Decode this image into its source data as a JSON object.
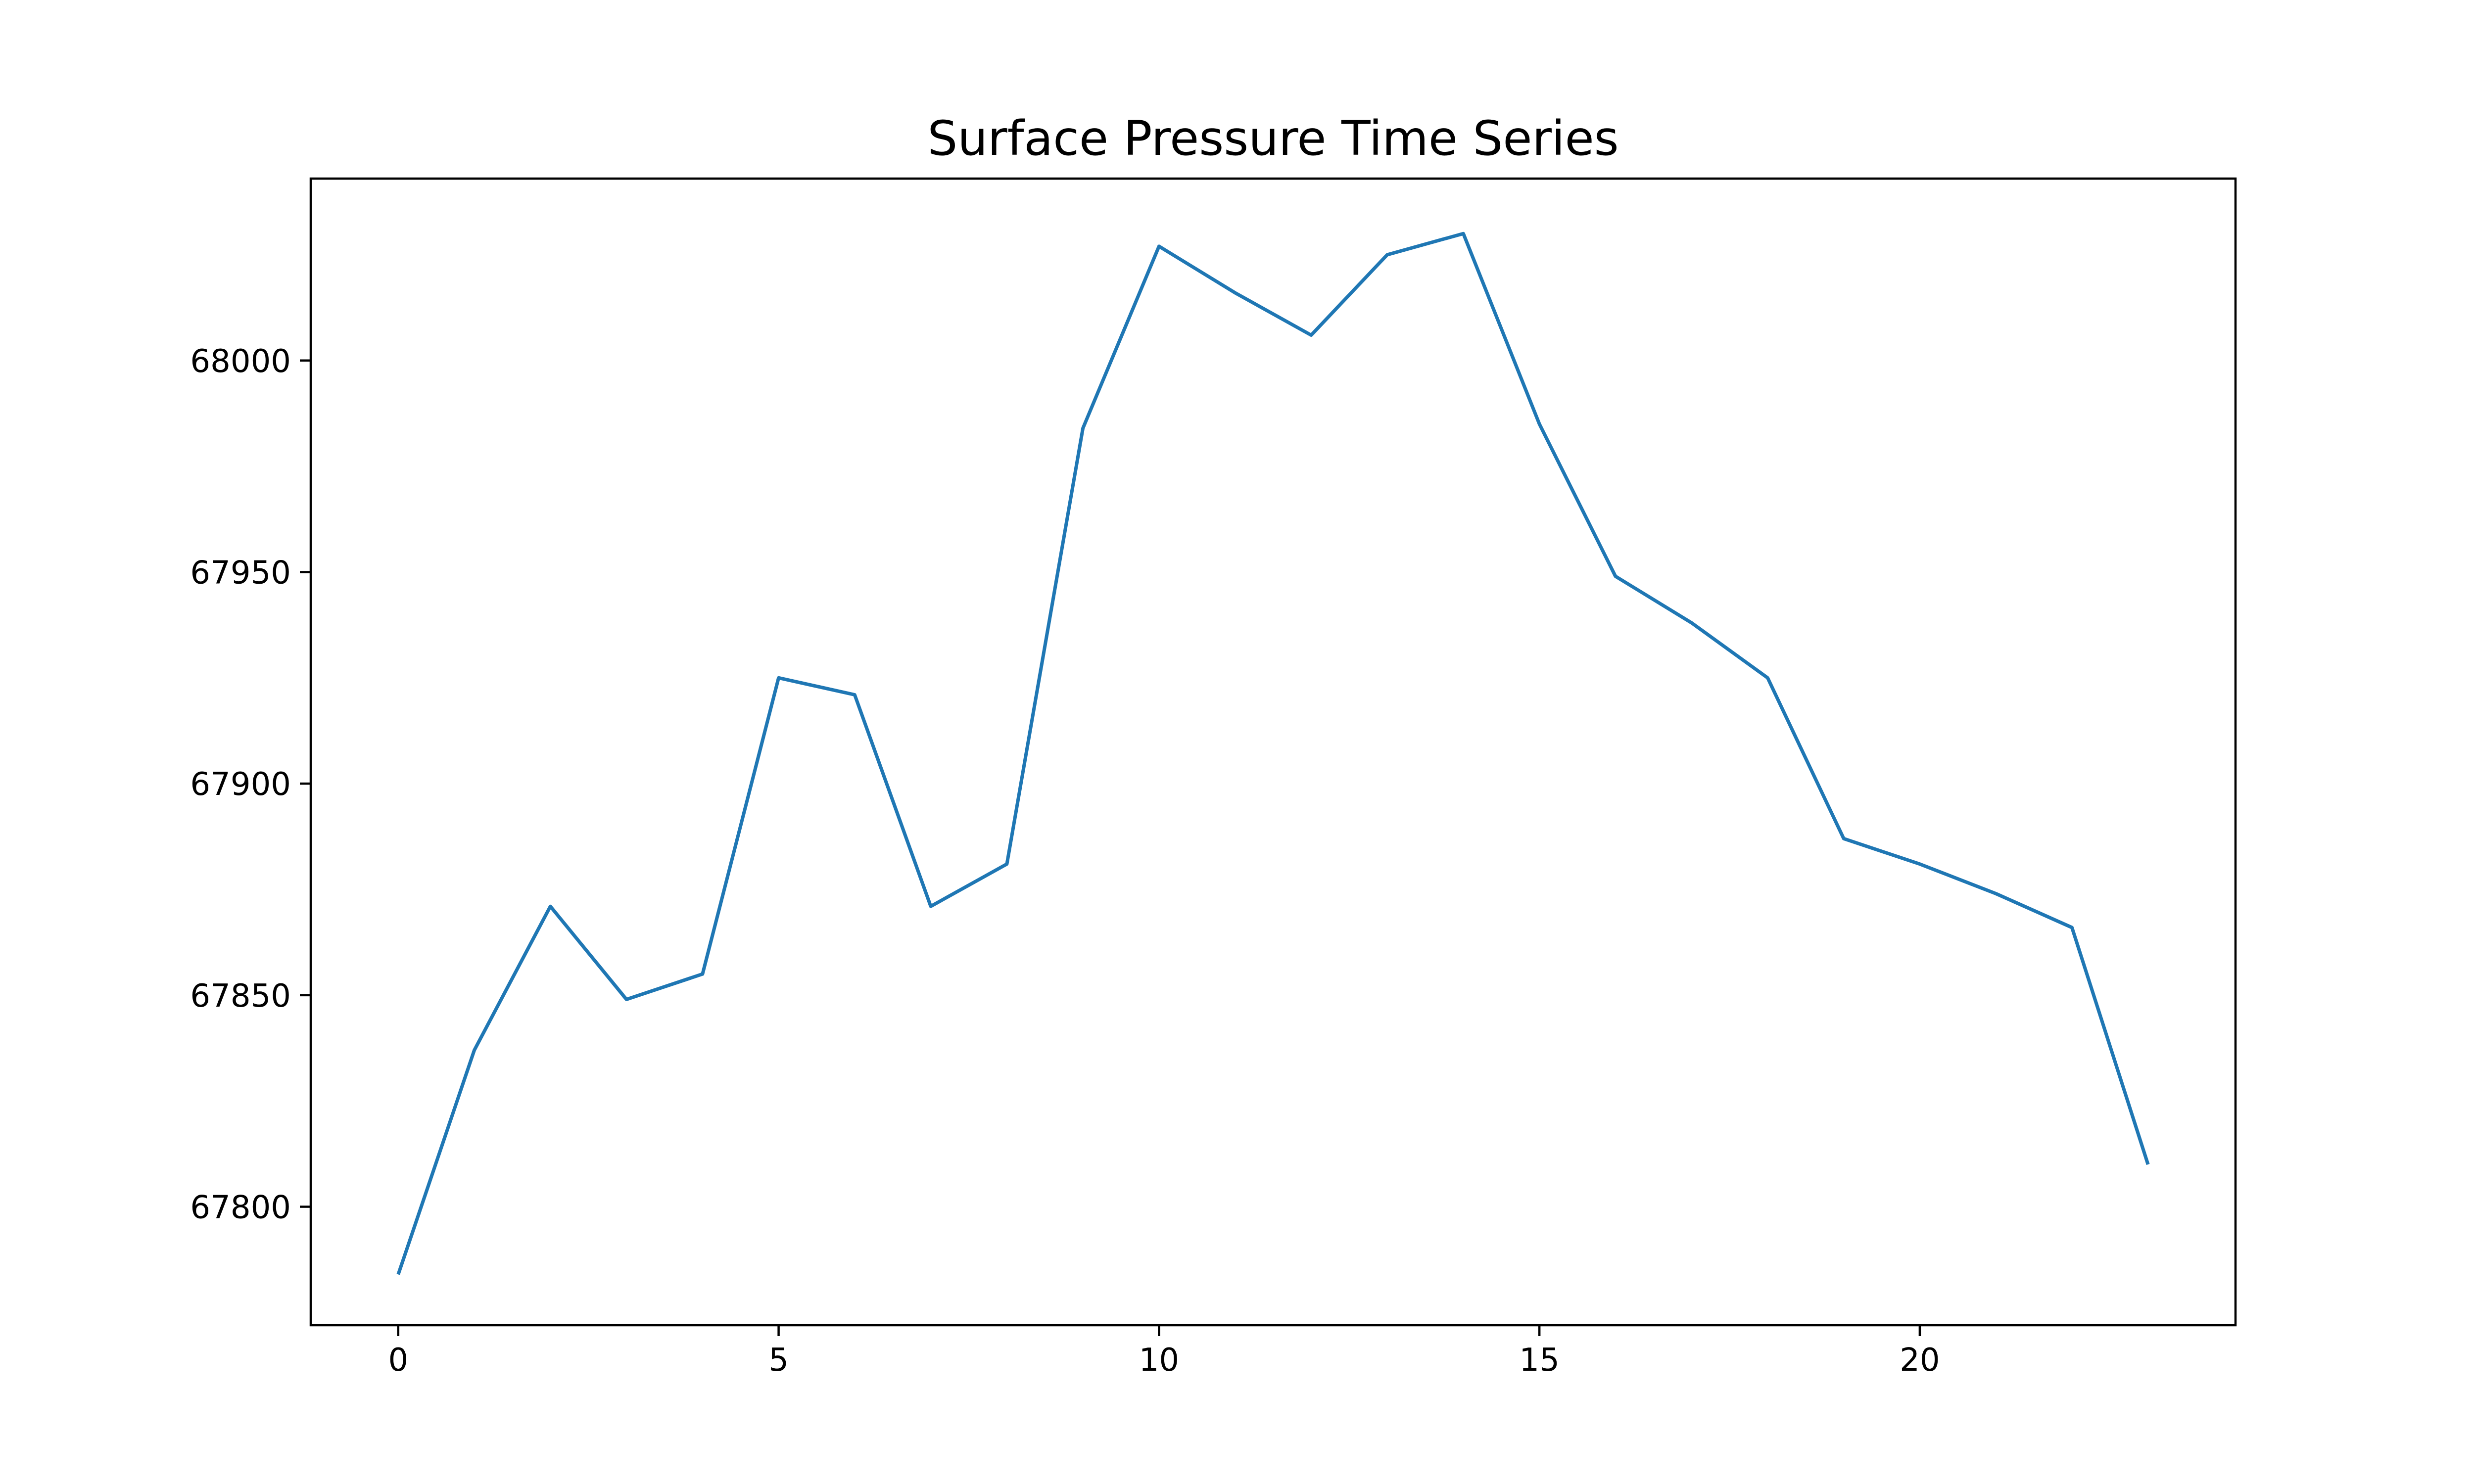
{
  "chart_data": {
    "type": "line",
    "title": "Surface Pressure Time Series",
    "xlabel": "",
    "ylabel": "",
    "x": [
      0,
      1,
      2,
      3,
      4,
      5,
      6,
      7,
      8,
      9,
      10,
      11,
      12,
      13,
      14,
      15,
      16,
      17,
      18,
      19,
      20,
      21,
      22,
      23
    ],
    "series": [
      {
        "values": [
          67784,
          67837,
          67871,
          67849,
          67855,
          67925,
          67921,
          67871,
          67881,
          67984,
          68027,
          68016,
          68006,
          68025,
          68030,
          67985,
          67949,
          67938,
          67925,
          67887,
          67881,
          67874,
          67866,
          67810
        ],
        "color": "#1f77b4"
      }
    ],
    "xlim": [
      -1.15,
      24.15
    ],
    "ylim": [
      67772,
      68043
    ],
    "xticks": [
      0,
      5,
      10,
      15,
      20
    ],
    "yticks": [
      67800,
      67850,
      67900,
      67950,
      68000
    ],
    "grid": false,
    "legend": "none"
  }
}
